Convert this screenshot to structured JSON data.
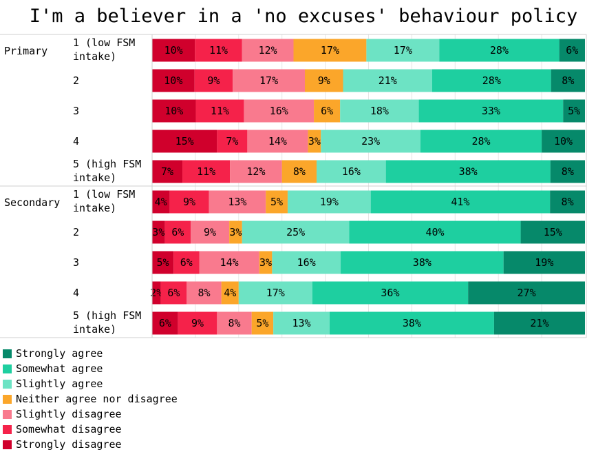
{
  "chart_data": {
    "type": "bar",
    "orientation": "horizontal",
    "stacked": true,
    "title": "I'm a believer in a 'no excuses' behaviour policy",
    "xlim": [
      0,
      100
    ],
    "grid": true,
    "legend_position": "bottom-left",
    "categories": [
      "Strongly disagree",
      "Somewhat disagree",
      "Slightly disagree",
      "Neither agree nor disagree",
      "Slightly agree",
      "Somewhat agree",
      "Strongly agree"
    ],
    "colors": [
      "#d0002c",
      "#f5224a",
      "#f97a8e",
      "#fba62a",
      "#6de3c4",
      "#1ecfa0",
      "#06896a"
    ],
    "groups": [
      {
        "name": "Primary",
        "rows": [
          {
            "label": [
              "1 (low FSM",
              "intake)"
            ],
            "values": [
              10,
              11,
              12,
              17,
              17,
              28,
              6
            ]
          },
          {
            "label": [
              "2"
            ],
            "values": [
              10,
              9,
              17,
              9,
              21,
              28,
              8
            ]
          },
          {
            "label": [
              "3"
            ],
            "values": [
              10,
              11,
              16,
              6,
              18,
              33,
              5
            ]
          },
          {
            "label": [
              "4"
            ],
            "values": [
              15,
              7,
              14,
              3,
              23,
              28,
              10
            ]
          },
          {
            "label": [
              "5 (high FSM",
              "intake)"
            ],
            "values": [
              7,
              11,
              12,
              8,
              16,
              38,
              8
            ]
          }
        ]
      },
      {
        "name": "Secondary",
        "rows": [
          {
            "label": [
              "1 (low FSM",
              "intake)"
            ],
            "values": [
              4,
              9,
              13,
              5,
              19,
              41,
              8
            ]
          },
          {
            "label": [
              "2"
            ],
            "values": [
              3,
              6,
              9,
              3,
              25,
              40,
              15
            ]
          },
          {
            "label": [
              "3"
            ],
            "values": [
              5,
              6,
              14,
              3,
              16,
              38,
              19
            ]
          },
          {
            "label": [
              "4"
            ],
            "values": [
              2,
              6,
              8,
              4,
              17,
              36,
              27
            ]
          },
          {
            "label": [
              "5 (high FSM",
              "intake)"
            ],
            "values": [
              6,
              9,
              8,
              5,
              13,
              38,
              21
            ]
          }
        ]
      }
    ],
    "legend": [
      "Strongly agree",
      "Somewhat agree",
      "Slightly agree",
      "Neither agree nor disagree",
      "Slightly disagree",
      "Somewhat disagree",
      "Strongly disagree"
    ]
  }
}
